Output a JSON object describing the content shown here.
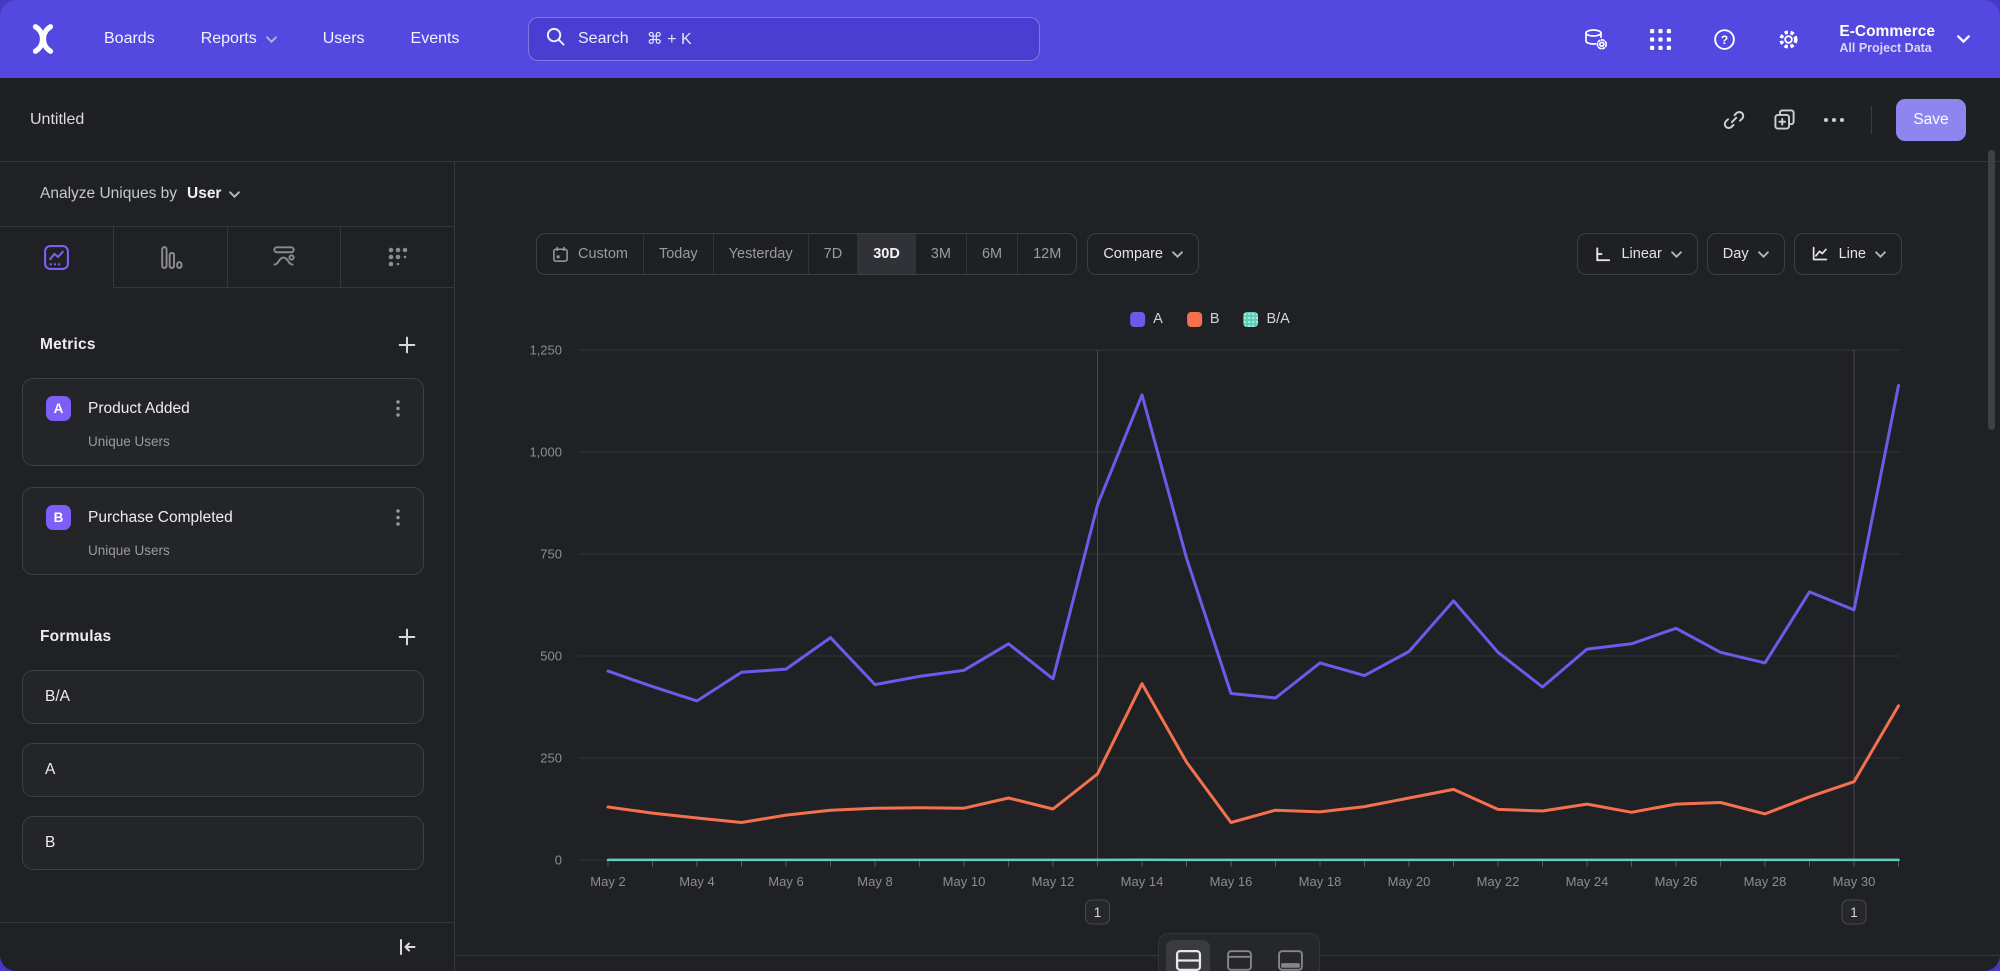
{
  "nav": {
    "items": [
      "Boards",
      "Reports",
      "Users",
      "Events"
    ],
    "project_name": "E-Commerce",
    "project_scope": "All Project Data"
  },
  "search": {
    "label": "Search",
    "shortcut": "⌘ + K"
  },
  "header": {
    "title": "Untitled",
    "save_label": "Save"
  },
  "sidebar": {
    "analyze_label": "Analyze Uniques by",
    "analyze_value": "User",
    "metrics_title": "Metrics",
    "metrics": [
      {
        "letter": "A",
        "name": "Product Added",
        "measure": "Unique Users"
      },
      {
        "letter": "B",
        "name": "Purchase Completed",
        "measure": "Unique Users"
      }
    ],
    "formulas_title": "Formulas",
    "formulas": [
      "B/A",
      "A",
      "B"
    ]
  },
  "controls": {
    "date_ranges": [
      "Custom",
      "Today",
      "Yesterday",
      "7D",
      "30D",
      "3M",
      "6M",
      "12M"
    ],
    "selected_range": "30D",
    "compare_label": "Compare",
    "scale_label": "Linear",
    "interval_label": "Day",
    "chart_type_label": "Line"
  },
  "annotations": [
    {
      "label": "1",
      "x_index": 11
    },
    {
      "label": "1",
      "x_index": 28
    }
  ],
  "colors": {
    "nav_purple": "#5348e0",
    "page_bg_purple": "#4639c8",
    "accent": "#7d5ef6",
    "save": "#8e85f1"
  },
  "chart_data": {
    "type": "line",
    "title": "",
    "xlabel": "",
    "ylabel": "",
    "x": [
      "May 2",
      "May 3",
      "May 4",
      "May 5",
      "May 6",
      "May 7",
      "May 8",
      "May 9",
      "May 10",
      "May 11",
      "May 12",
      "May 13",
      "May 14",
      "May 15",
      "May 16",
      "May 17",
      "May 18",
      "May 19",
      "May 20",
      "May 21",
      "May 22",
      "May 23",
      "May 24",
      "May 25",
      "May 26",
      "May 27",
      "May 28",
      "May 29",
      "May 30",
      "May 31"
    ],
    "series": [
      {
        "name": "A",
        "color": "#6e5aea",
        "values": [
          463,
          425,
          390,
          460,
          468,
          545,
          430,
          450,
          465,
          530,
          444,
          870,
          1140,
          740,
          408,
          397,
          483,
          452,
          511,
          635,
          509,
          424,
          517,
          530,
          568,
          509,
          483,
          657,
          613,
          1163
        ]
      },
      {
        "name": "B",
        "color": "#f4714f",
        "values": [
          130,
          115,
          103,
          92,
          110,
          122,
          127,
          128,
          127,
          152,
          125,
          211,
          432,
          240,
          92,
          122,
          118,
          131,
          152,
          173,
          124,
          120,
          137,
          117,
          137,
          141,
          113,
          155,
          192,
          378
        ]
      },
      {
        "name": "B/A",
        "color": "#5fcfbc",
        "values": [
          0.28,
          0.27,
          0.26,
          0.2,
          0.24,
          0.22,
          0.3,
          0.28,
          0.27,
          0.29,
          0.28,
          0.24,
          0.38,
          0.32,
          0.23,
          0.31,
          0.24,
          0.29,
          0.3,
          0.27,
          0.24,
          0.28,
          0.27,
          0.22,
          0.24,
          0.28,
          0.23,
          0.24,
          0.31,
          0.33
        ]
      }
    ],
    "ylim": [
      0,
      1250
    ],
    "ytick_values": [
      0,
      250,
      500,
      750,
      1000,
      1250
    ],
    "yticks": [
      "0",
      "250",
      "500",
      "750",
      "1,000",
      "1,250"
    ],
    "xtick_every": 2,
    "grid": "horizontal",
    "legend_position": "top-center"
  }
}
